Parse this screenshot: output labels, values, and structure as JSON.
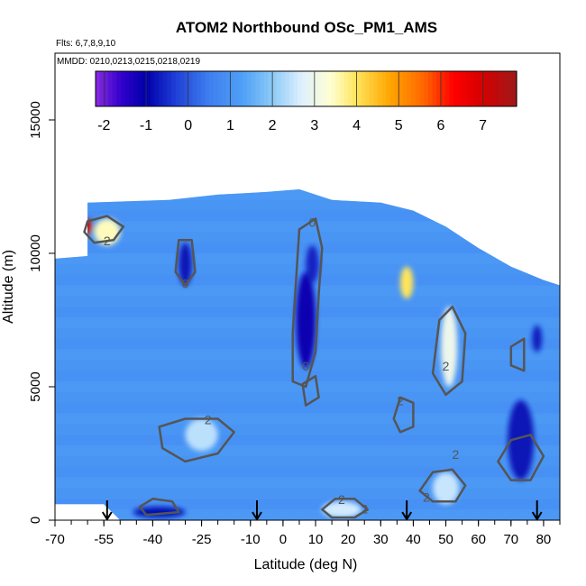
{
  "chart_data": {
    "type": "heatmap",
    "title": "ATOM2 Northbound OSc_PM1_AMS",
    "flights_label": "Flts: 6,7,8,9,10",
    "dates_label": "MMDD: 0210,0213,0215,0218,0219",
    "xlabel": "Latitude (deg N)",
    "ylabel": "Altitude (m)",
    "xlim": [
      -70,
      85
    ],
    "ylim": [
      0,
      17500
    ],
    "x_tick_labels": [
      {
        "value": -70,
        "label": "-70"
      },
      {
        "value": -55,
        "label": "-55"
      },
      {
        "value": -40,
        "label": "-40"
      },
      {
        "value": -25,
        "label": "-25"
      },
      {
        "value": -10,
        "label": "-10"
      },
      {
        "value": 0,
        "label": "0"
      },
      {
        "value": 10,
        "label": "10"
      },
      {
        "value": 20,
        "label": "20"
      },
      {
        "value": 30,
        "label": "30"
      },
      {
        "value": 40,
        "label": "40"
      },
      {
        "value": 50,
        "label": "50"
      },
      {
        "value": 60,
        "label": "60"
      },
      {
        "value": 70,
        "label": "70"
      },
      {
        "value": 80,
        "label": "80"
      }
    ],
    "y_tick_labels": [
      {
        "value": 0,
        "label": "0"
      },
      {
        "value": 5000,
        "label": "5000"
      },
      {
        "value": 10000,
        "label": "10000"
      },
      {
        "value": 15000,
        "label": "15000"
      }
    ],
    "colorbar": {
      "min": -2.2,
      "max": 7.8,
      "tick_labels": [
        {
          "value": -2,
          "label": "-2"
        },
        {
          "value": -1,
          "label": "-1"
        },
        {
          "value": 0,
          "label": "0"
        },
        {
          "value": 1,
          "label": "1"
        },
        {
          "value": 2,
          "label": "2"
        },
        {
          "value": 3,
          "label": "3"
        },
        {
          "value": 4,
          "label": "4"
        },
        {
          "value": 5,
          "label": "5"
        },
        {
          "value": 6,
          "label": "6"
        },
        {
          "value": 7,
          "label": "7"
        }
      ],
      "color_stops": [
        {
          "value": -2.2,
          "color": "#8a2be2"
        },
        {
          "value": -1.6,
          "color": "#3300cc"
        },
        {
          "value": -1.0,
          "color": "#0000aa"
        },
        {
          "value": -0.3,
          "color": "#1f3fd6"
        },
        {
          "value": 0.5,
          "color": "#3f7ff0"
        },
        {
          "value": 1.3,
          "color": "#4fa0f6"
        },
        {
          "value": 2.0,
          "color": "#8ccaf7"
        },
        {
          "value": 2.7,
          "color": "#dff0ff"
        },
        {
          "value": 3.4,
          "color": "#ffffd0"
        },
        {
          "value": 4.0,
          "color": "#ffe45a"
        },
        {
          "value": 4.8,
          "color": "#ffa500"
        },
        {
          "value": 5.6,
          "color": "#ff6600"
        },
        {
          "value": 6.3,
          "color": "#ff0000"
        },
        {
          "value": 7.0,
          "color": "#d40000"
        },
        {
          "value": 7.8,
          "color": "#9e1a1a"
        }
      ]
    },
    "background_value": 1.0,
    "domain_outline": [
      [
        -70,
        600
      ],
      [
        -70,
        9800
      ],
      [
        -60,
        9900
      ],
      [
        -60,
        11900
      ],
      [
        -35,
        12000
      ],
      [
        -20,
        12200
      ],
      [
        -5,
        12300
      ],
      [
        5,
        12400
      ],
      [
        15,
        12000
      ],
      [
        30,
        11900
      ],
      [
        40,
        11600
      ],
      [
        50,
        11000
      ],
      [
        60,
        10200
      ],
      [
        70,
        9500
      ],
      [
        80,
        9000
      ],
      [
        85,
        8800
      ],
      [
        85,
        0
      ],
      [
        -50,
        0
      ],
      [
        -55,
        600
      ],
      [
        -70,
        600
      ]
    ],
    "blobs": [
      {
        "x": -60,
        "y": 11000,
        "rx": 1.5,
        "ry": 300,
        "value": 7.2
      },
      {
        "x": -54,
        "y": 10800,
        "rx": 4,
        "ry": 500,
        "value": 3.5
      },
      {
        "x": 38,
        "y": 8900,
        "rx": 2,
        "ry": 600,
        "value": 4.0
      },
      {
        "x": 51,
        "y": 6500,
        "rx": 2.5,
        "ry": 1500,
        "value": 3.0
      },
      {
        "x": -25,
        "y": 3200,
        "rx": 5,
        "ry": 600,
        "value": 2.4
      },
      {
        "x": 50,
        "y": 1200,
        "rx": 4,
        "ry": 600,
        "value": 2.5
      },
      {
        "x": 18,
        "y": 400,
        "rx": 6,
        "ry": 300,
        "value": 2.6
      },
      {
        "x": -30,
        "y": 9600,
        "rx": 2,
        "ry": 800,
        "value": -0.8
      },
      {
        "x": 7,
        "y": 7500,
        "rx": 3,
        "ry": 1800,
        "value": -1.1
      },
      {
        "x": 9,
        "y": 9600,
        "rx": 2,
        "ry": 700,
        "value": -0.6
      },
      {
        "x": 73,
        "y": 3000,
        "rx": 4,
        "ry": 1500,
        "value": -0.8
      },
      {
        "x": -38,
        "y": 300,
        "rx": 8,
        "ry": 200,
        "value": -0.9
      },
      {
        "x": 78,
        "y": 6800,
        "rx": 1.5,
        "ry": 500,
        "value": -0.7
      }
    ],
    "contours": [
      {
        "level": 2,
        "points": [
          [
            -60,
            11200
          ],
          [
            -54,
            11400
          ],
          [
            -49,
            11000
          ],
          [
            -52,
            10500
          ],
          [
            -58,
            10400
          ],
          [
            -61,
            10800
          ],
          [
            -60,
            11200
          ]
        ]
      },
      {
        "level": 2,
        "points": [
          [
            -38,
            3500
          ],
          [
            -30,
            3800
          ],
          [
            -20,
            3800
          ],
          [
            -15,
            3300
          ],
          [
            -20,
            2500
          ],
          [
            -30,
            2200
          ],
          [
            -37,
            2700
          ],
          [
            -38,
            3500
          ]
        ]
      },
      {
        "level": 2,
        "points": [
          [
            46,
            5500
          ],
          [
            48,
            7500
          ],
          [
            52,
            8000
          ],
          [
            56,
            7000
          ],
          [
            55,
            5200
          ],
          [
            50,
            4700
          ],
          [
            46,
            5500
          ]
        ]
      },
      {
        "level": 2,
        "points": [
          [
            42,
            1100
          ],
          [
            46,
            1800
          ],
          [
            52,
            1900
          ],
          [
            56,
            1300
          ],
          [
            53,
            700
          ],
          [
            46,
            700
          ],
          [
            42,
            1100
          ]
        ]
      },
      {
        "level": 2,
        "points": [
          [
            12,
            400
          ],
          [
            16,
            800
          ],
          [
            22,
            800
          ],
          [
            26,
            400
          ],
          [
            22,
            100
          ],
          [
            15,
            100
          ],
          [
            12,
            400
          ]
        ]
      },
      {
        "level": 2,
        "points": [
          [
            34,
            3800
          ],
          [
            36,
            4600
          ],
          [
            40,
            4400
          ],
          [
            40,
            3500
          ],
          [
            36,
            3300
          ],
          [
            34,
            3800
          ]
        ]
      },
      {
        "level": 2,
        "points": [
          [
            66,
            2200
          ],
          [
            70,
            3000
          ],
          [
            76,
            3200
          ],
          [
            80,
            2400
          ],
          [
            76,
            1500
          ],
          [
            70,
            1500
          ],
          [
            66,
            2200
          ]
        ]
      },
      {
        "level": 0,
        "points": [
          [
            -32,
            10500
          ],
          [
            -28,
            10500
          ],
          [
            -27,
            9300
          ],
          [
            -30,
            8800
          ],
          [
            -33,
            9300
          ],
          [
            -32,
            10500
          ]
        ]
      },
      {
        "level": 0,
        "points": [
          [
            5,
            10900
          ],
          [
            10,
            11300
          ],
          [
            12,
            10200
          ],
          [
            11,
            8500
          ],
          [
            10,
            6300
          ],
          [
            7,
            5000
          ],
          [
            3,
            5200
          ],
          [
            3,
            7000
          ],
          [
            4,
            9000
          ],
          [
            5,
            10900
          ]
        ]
      },
      {
        "level": 0,
        "points": [
          [
            6,
            5100
          ],
          [
            10,
            5400
          ],
          [
            11,
            4600
          ],
          [
            7,
            4300
          ],
          [
            6,
            5100
          ]
        ]
      },
      {
        "level": 0,
        "points": [
          [
            -44,
            500
          ],
          [
            -40,
            800
          ],
          [
            -34,
            700
          ],
          [
            -32,
            300
          ],
          [
            -42,
            200
          ],
          [
            -44,
            500
          ]
        ]
      },
      {
        "level": 0,
        "points": [
          [
            70,
            6500
          ],
          [
            74,
            6800
          ],
          [
            74,
            5600
          ],
          [
            70,
            5800
          ],
          [
            70,
            6500
          ]
        ]
      }
    ],
    "contour_labels": [
      {
        "x": -54,
        "y": 10300,
        "label": "2"
      },
      {
        "x": -23,
        "y": 3600,
        "label": "2"
      },
      {
        "x": 36,
        "y": 4300,
        "label": "2"
      },
      {
        "x": 50,
        "y": 5600,
        "label": "2"
      },
      {
        "x": 53,
        "y": 2300,
        "label": "2"
      },
      {
        "x": 44,
        "y": 700,
        "label": "2"
      },
      {
        "x": 25,
        "y": 250,
        "label": "2"
      },
      {
        "x": 18,
        "y": 600,
        "label": "2"
      },
      {
        "x": 7,
        "y": 5600,
        "label": "0"
      },
      {
        "x": -30,
        "y": 8700,
        "label": "0"
      },
      {
        "x": 9,
        "y": 11000,
        "label": "0"
      }
    ],
    "arrows": [
      {
        "x": -54
      },
      {
        "x": -8
      },
      {
        "x": 38
      },
      {
        "x": 78
      }
    ]
  }
}
